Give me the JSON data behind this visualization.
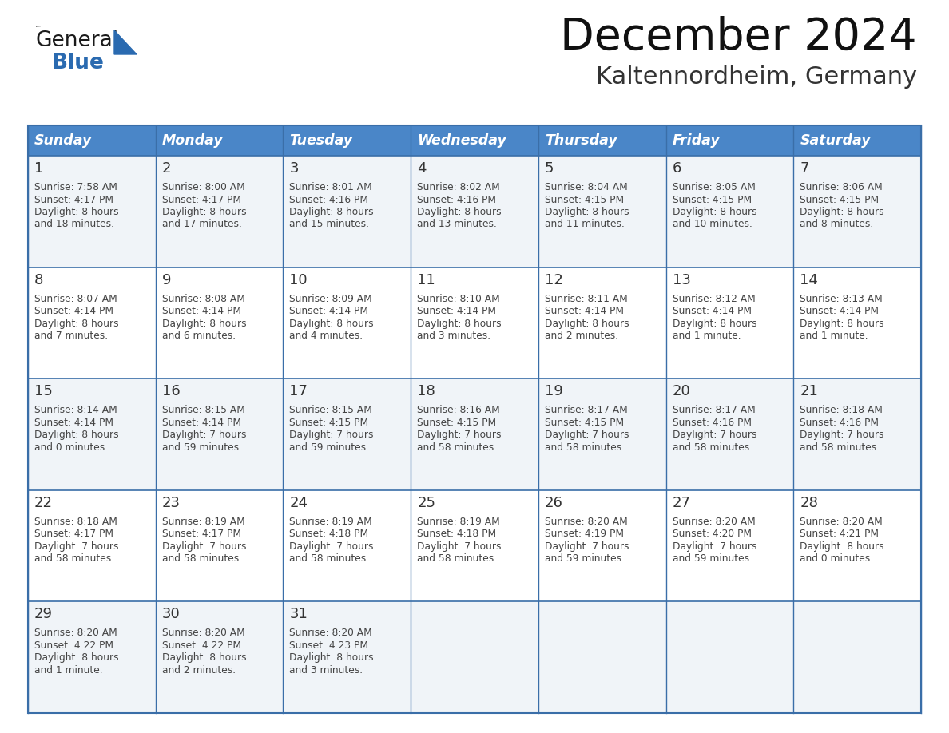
{
  "title": "December 2024",
  "subtitle": "Kaltennordheim, Germany",
  "days_of_week": [
    "Sunday",
    "Monday",
    "Tuesday",
    "Wednesday",
    "Thursday",
    "Friday",
    "Saturday"
  ],
  "header_bg": "#4a86c8",
  "header_text": "#ffffff",
  "row_bg_odd": "#f0f4f8",
  "row_bg_even": "#ffffff",
  "border_color": "#3a6ea8",
  "day_num_color": "#333333",
  "cell_text_color": "#444444",
  "calendar_data": [
    [
      {
        "day": 1,
        "sunrise": "7:58 AM",
        "sunset": "4:17 PM",
        "daylight_h": "8 hours",
        "daylight_m": "and 18 minutes."
      },
      {
        "day": 2,
        "sunrise": "8:00 AM",
        "sunset": "4:17 PM",
        "daylight_h": "8 hours",
        "daylight_m": "and 17 minutes."
      },
      {
        "day": 3,
        "sunrise": "8:01 AM",
        "sunset": "4:16 PM",
        "daylight_h": "8 hours",
        "daylight_m": "and 15 minutes."
      },
      {
        "day": 4,
        "sunrise": "8:02 AM",
        "sunset": "4:16 PM",
        "daylight_h": "8 hours",
        "daylight_m": "and 13 minutes."
      },
      {
        "day": 5,
        "sunrise": "8:04 AM",
        "sunset": "4:15 PM",
        "daylight_h": "8 hours",
        "daylight_m": "and 11 minutes."
      },
      {
        "day": 6,
        "sunrise": "8:05 AM",
        "sunset": "4:15 PM",
        "daylight_h": "8 hours",
        "daylight_m": "and 10 minutes."
      },
      {
        "day": 7,
        "sunrise": "8:06 AM",
        "sunset": "4:15 PM",
        "daylight_h": "8 hours",
        "daylight_m": "and 8 minutes."
      }
    ],
    [
      {
        "day": 8,
        "sunrise": "8:07 AM",
        "sunset": "4:14 PM",
        "daylight_h": "8 hours",
        "daylight_m": "and 7 minutes."
      },
      {
        "day": 9,
        "sunrise": "8:08 AM",
        "sunset": "4:14 PM",
        "daylight_h": "8 hours",
        "daylight_m": "and 6 minutes."
      },
      {
        "day": 10,
        "sunrise": "8:09 AM",
        "sunset": "4:14 PM",
        "daylight_h": "8 hours",
        "daylight_m": "and 4 minutes."
      },
      {
        "day": 11,
        "sunrise": "8:10 AM",
        "sunset": "4:14 PM",
        "daylight_h": "8 hours",
        "daylight_m": "and 3 minutes."
      },
      {
        "day": 12,
        "sunrise": "8:11 AM",
        "sunset": "4:14 PM",
        "daylight_h": "8 hours",
        "daylight_m": "and 2 minutes."
      },
      {
        "day": 13,
        "sunrise": "8:12 AM",
        "sunset": "4:14 PM",
        "daylight_h": "8 hours",
        "daylight_m": "and 1 minute."
      },
      {
        "day": 14,
        "sunrise": "8:13 AM",
        "sunset": "4:14 PM",
        "daylight_h": "8 hours",
        "daylight_m": "and 1 minute."
      }
    ],
    [
      {
        "day": 15,
        "sunrise": "8:14 AM",
        "sunset": "4:14 PM",
        "daylight_h": "8 hours",
        "daylight_m": "and 0 minutes."
      },
      {
        "day": 16,
        "sunrise": "8:15 AM",
        "sunset": "4:14 PM",
        "daylight_h": "7 hours",
        "daylight_m": "and 59 minutes."
      },
      {
        "day": 17,
        "sunrise": "8:15 AM",
        "sunset": "4:15 PM",
        "daylight_h": "7 hours",
        "daylight_m": "and 59 minutes."
      },
      {
        "day": 18,
        "sunrise": "8:16 AM",
        "sunset": "4:15 PM",
        "daylight_h": "7 hours",
        "daylight_m": "and 58 minutes."
      },
      {
        "day": 19,
        "sunrise": "8:17 AM",
        "sunset": "4:15 PM",
        "daylight_h": "7 hours",
        "daylight_m": "and 58 minutes."
      },
      {
        "day": 20,
        "sunrise": "8:17 AM",
        "sunset": "4:16 PM",
        "daylight_h": "7 hours",
        "daylight_m": "and 58 minutes."
      },
      {
        "day": 21,
        "sunrise": "8:18 AM",
        "sunset": "4:16 PM",
        "daylight_h": "7 hours",
        "daylight_m": "and 58 minutes."
      }
    ],
    [
      {
        "day": 22,
        "sunrise": "8:18 AM",
        "sunset": "4:17 PM",
        "daylight_h": "7 hours",
        "daylight_m": "and 58 minutes."
      },
      {
        "day": 23,
        "sunrise": "8:19 AM",
        "sunset": "4:17 PM",
        "daylight_h": "7 hours",
        "daylight_m": "and 58 minutes."
      },
      {
        "day": 24,
        "sunrise": "8:19 AM",
        "sunset": "4:18 PM",
        "daylight_h": "7 hours",
        "daylight_m": "and 58 minutes."
      },
      {
        "day": 25,
        "sunrise": "8:19 AM",
        "sunset": "4:18 PM",
        "daylight_h": "7 hours",
        "daylight_m": "and 58 minutes."
      },
      {
        "day": 26,
        "sunrise": "8:20 AM",
        "sunset": "4:19 PM",
        "daylight_h": "7 hours",
        "daylight_m": "and 59 minutes."
      },
      {
        "day": 27,
        "sunrise": "8:20 AM",
        "sunset": "4:20 PM",
        "daylight_h": "7 hours",
        "daylight_m": "and 59 minutes."
      },
      {
        "day": 28,
        "sunrise": "8:20 AM",
        "sunset": "4:21 PM",
        "daylight_h": "8 hours",
        "daylight_m": "and 0 minutes."
      }
    ],
    [
      {
        "day": 29,
        "sunrise": "8:20 AM",
        "sunset": "4:22 PM",
        "daylight_h": "8 hours",
        "daylight_m": "and 1 minute."
      },
      {
        "day": 30,
        "sunrise": "8:20 AM",
        "sunset": "4:22 PM",
        "daylight_h": "8 hours",
        "daylight_m": "and 2 minutes."
      },
      {
        "day": 31,
        "sunrise": "8:20 AM",
        "sunset": "4:23 PM",
        "daylight_h": "8 hours",
        "daylight_m": "and 3 minutes."
      },
      null,
      null,
      null,
      null
    ]
  ],
  "logo_color_general": "#1a1a1a",
  "logo_color_blue": "#2a6ab0",
  "logo_triangle_color": "#2a6ab0",
  "title_color": "#111111",
  "subtitle_color": "#333333"
}
